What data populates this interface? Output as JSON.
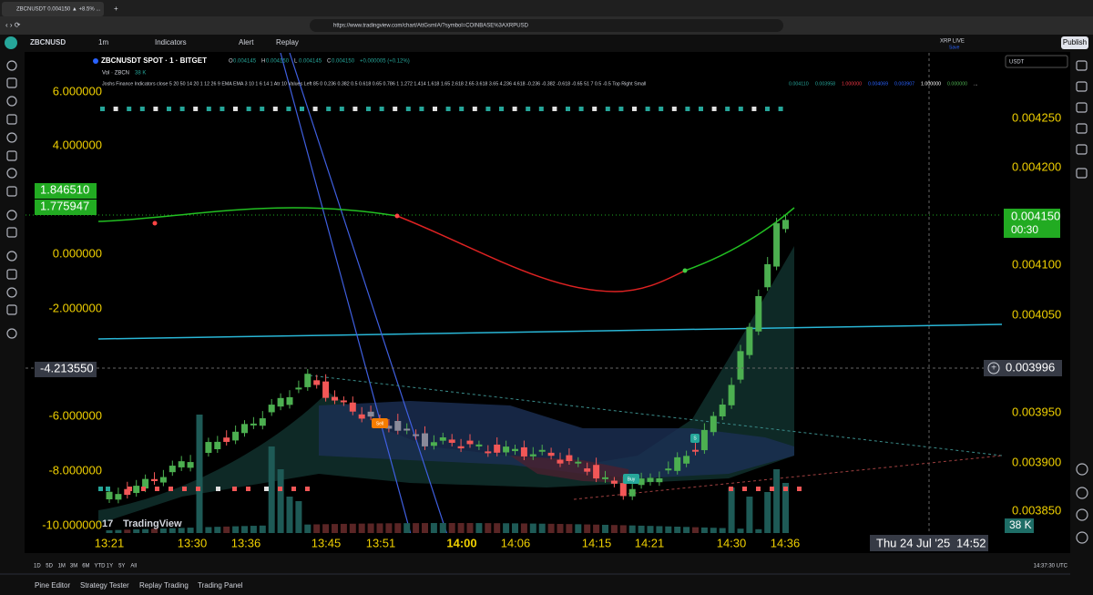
{
  "browser": {
    "tab_title": "ZBCNUSDT 0.004150 ▲ +8.5% ...",
    "url": "https://www.tradingview.com/chart/AttGsmIA/?symbol=COINBASE%3AXRPUSD"
  },
  "toolbar": {
    "symbol": "ZBCNUSD",
    "interval": "1m",
    "indicators": "Indicators",
    "alert": "Alert",
    "replay": "Replay",
    "layout_name": "XRP LIVE",
    "save": "Save",
    "publish": "Publish"
  },
  "legend": {
    "title": "ZBCNUSDT SPOT · 1 · BITGET",
    "ohlc": [
      {
        "label": "O",
        "value": "0.004145"
      },
      {
        "label": "H",
        "value": "0.004150"
      },
      {
        "label": "L",
        "value": "0.004145"
      },
      {
        "label": "C",
        "value": "0.004150"
      }
    ],
    "change": "+0.000005 (+0.12%)",
    "volume_label": "Vol · ZBCN",
    "volume_value": "38 K",
    "indicator": "Joshs Finance Indicators close 5 20 50 14 20 1 12 26 9 EMA EMA 3 10 1 6 14 1 Atr 10 Values Left 85 0 0.236 0.382 0.5 0.618 0.65 0.786 1 1.272 1.414 1.618 1.65 2.618 2.65 3.618 3.65 4.236 4.618 -0.236 -0.382 -0.618 -0.65 51 7 0.5 -0.5 Top Right Small",
    "indicator_values": [
      {
        "text": "0.004110",
        "color": "#26a69a"
      },
      {
        "text": "0.003958",
        "color": "#26a69a"
      },
      {
        "text": "1.000000",
        "color": "#f23645"
      },
      {
        "text": "0.004069",
        "color": "#2962ff"
      },
      {
        "text": "0.003907",
        "color": "#2962ff"
      },
      {
        "text": "1.000000",
        "color": "#ffffff"
      },
      {
        "text": "0.000000",
        "color": "#4caf50"
      },
      {
        "text": "...",
        "color": "#ffffff"
      }
    ]
  },
  "left_scale": {
    "labels": [
      "6.000000",
      "4.000000",
      "0.000000",
      "-2.000000",
      "-6.000000",
      "-8.000000",
      "-10.000000"
    ],
    "highlights": [
      "1.846510",
      "1.775947",
      "-4.213550"
    ]
  },
  "right_scale": {
    "currency": "USDT",
    "labels": [
      "0.004250",
      "0.004200",
      "0.004100",
      "0.004050",
      "0.003950",
      "0.003900",
      "0.003850"
    ],
    "last_price": "0.004150",
    "countdown": "00:30",
    "crosshair_price": "0.003996",
    "volume": "38 K"
  },
  "time_axis": {
    "labels": [
      "13:21",
      "13:30",
      "13:36",
      "13:45",
      "13:51",
      "14:00",
      "14:06",
      "14:15",
      "14:21",
      "14:30",
      "14:36"
    ],
    "crosshair_date": "Thu 24 Jul '25",
    "crosshair_time": "14:52"
  },
  "signals": {
    "sell": "Sell",
    "buy": "Buy",
    "short": "S"
  },
  "watermark": "TradingView",
  "ranges": [
    "1D",
    "5D",
    "1M",
    "3M",
    "6M",
    "YTD",
    "1Y",
    "5Y",
    "All"
  ],
  "clock": "14:37:30 UTC",
  "bottom_tabs": [
    "Pine Editor",
    "Strategy Tester",
    "Replay Trading",
    "Trading Panel"
  ]
}
